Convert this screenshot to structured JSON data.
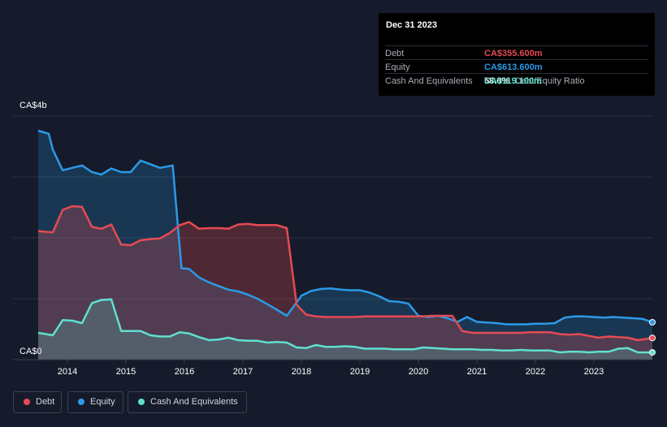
{
  "tooltip": {
    "date": "Dec 31 2023",
    "rows": [
      {
        "label": "Debt",
        "value": "CA$355.600m",
        "color": "#e64a54"
      },
      {
        "label": "Equity",
        "value": "CA$613.600m",
        "color": "#2b9ae8"
      },
      {
        "label": "",
        "value": "58.0%",
        "suffix": "Debt/Equity Ratio",
        "color": "#ffffff"
      },
      {
        "label": "Cash And Equivalents",
        "value": "CA$119.100m",
        "color": "#5fe0cf"
      }
    ]
  },
  "legend": [
    {
      "label": "Debt",
      "color": "#e64a54"
    },
    {
      "label": "Equity",
      "color": "#2b9ae8"
    },
    {
      "label": "Cash And Equivalents",
      "color": "#5fe0cf"
    }
  ],
  "chart_data": {
    "type": "area",
    "title": "",
    "xlabel": "",
    "ylabel": "",
    "ylim": [
      0,
      4000
    ],
    "xlim": [
      2013.5,
      2024.0
    ],
    "y_tick_labels": [
      {
        "value": 4000,
        "label": "CA$4b"
      },
      {
        "value": 0,
        "label": "CA$0"
      }
    ],
    "x_ticks": [
      2014,
      2015,
      2016,
      2017,
      2018,
      2019,
      2020,
      2021,
      2022,
      2023
    ],
    "grid": true,
    "units": "CA$ millions",
    "series": [
      {
        "name": "Equity",
        "color": "#2b9ae8",
        "points": [
          [
            2013.5,
            3760
          ],
          [
            2013.68,
            3710
          ],
          [
            2013.75,
            3450
          ],
          [
            2013.92,
            3110
          ],
          [
            2014.08,
            3150
          ],
          [
            2014.25,
            3190
          ],
          [
            2014.42,
            3080
          ],
          [
            2014.58,
            3040
          ],
          [
            2014.75,
            3140
          ],
          [
            2014.92,
            3080
          ],
          [
            2015.08,
            3080
          ],
          [
            2015.25,
            3270
          ],
          [
            2015.42,
            3210
          ],
          [
            2015.58,
            3150
          ],
          [
            2015.8,
            3190
          ],
          [
            2015.95,
            1500
          ],
          [
            2016.08,
            1490
          ],
          [
            2016.25,
            1350
          ],
          [
            2016.42,
            1270
          ],
          [
            2016.58,
            1210
          ],
          [
            2016.75,
            1150
          ],
          [
            2016.92,
            1120
          ],
          [
            2017.08,
            1070
          ],
          [
            2017.25,
            1000
          ],
          [
            2017.42,
            910
          ],
          [
            2017.58,
            820
          ],
          [
            2017.75,
            720
          ],
          [
            2018.0,
            1050
          ],
          [
            2018.17,
            1130
          ],
          [
            2018.33,
            1160
          ],
          [
            2018.5,
            1170
          ],
          [
            2018.67,
            1150
          ],
          [
            2018.83,
            1140
          ],
          [
            2019.0,
            1140
          ],
          [
            2019.17,
            1100
          ],
          [
            2019.33,
            1040
          ],
          [
            2019.5,
            960
          ],
          [
            2019.67,
            950
          ],
          [
            2019.83,
            920
          ],
          [
            2020.0,
            720
          ],
          [
            2020.17,
            700
          ],
          [
            2020.33,
            720
          ],
          [
            2020.5,
            680
          ],
          [
            2020.67,
            620
          ],
          [
            2020.83,
            700
          ],
          [
            2021.0,
            620
          ],
          [
            2021.17,
            610
          ],
          [
            2021.33,
            600
          ],
          [
            2021.5,
            580
          ],
          [
            2021.67,
            580
          ],
          [
            2021.83,
            580
          ],
          [
            2022.0,
            590
          ],
          [
            2022.17,
            590
          ],
          [
            2022.33,
            600
          ],
          [
            2022.5,
            690
          ],
          [
            2022.67,
            710
          ],
          [
            2022.83,
            710
          ],
          [
            2023.0,
            700
          ],
          [
            2023.17,
            690
          ],
          [
            2023.33,
            700
          ],
          [
            2023.5,
            690
          ],
          [
            2023.67,
            680
          ],
          [
            2023.83,
            670
          ],
          [
            2024.0,
            614
          ]
        ]
      },
      {
        "name": "Debt",
        "color": "#e64a54",
        "points": [
          [
            2013.5,
            2110
          ],
          [
            2013.75,
            2090
          ],
          [
            2013.92,
            2460
          ],
          [
            2014.08,
            2520
          ],
          [
            2014.25,
            2510
          ],
          [
            2014.42,
            2180
          ],
          [
            2014.58,
            2150
          ],
          [
            2014.75,
            2220
          ],
          [
            2014.92,
            1890
          ],
          [
            2015.08,
            1880
          ],
          [
            2015.25,
            1960
          ],
          [
            2015.42,
            1980
          ],
          [
            2015.58,
            1990
          ],
          [
            2015.75,
            2080
          ],
          [
            2015.92,
            2210
          ],
          [
            2016.08,
            2260
          ],
          [
            2016.25,
            2150
          ],
          [
            2016.42,
            2160
          ],
          [
            2016.58,
            2160
          ],
          [
            2016.75,
            2150
          ],
          [
            2016.92,
            2220
          ],
          [
            2017.08,
            2230
          ],
          [
            2017.25,
            2210
          ],
          [
            2017.42,
            2210
          ],
          [
            2017.58,
            2210
          ],
          [
            2017.75,
            2160
          ],
          [
            2017.92,
            900
          ],
          [
            2018.08,
            740
          ],
          [
            2018.25,
            710
          ],
          [
            2018.42,
            700
          ],
          [
            2018.58,
            700
          ],
          [
            2018.75,
            700
          ],
          [
            2018.92,
            700
          ],
          [
            2019.08,
            710
          ],
          [
            2019.25,
            710
          ],
          [
            2019.42,
            710
          ],
          [
            2019.58,
            710
          ],
          [
            2019.75,
            710
          ],
          [
            2019.92,
            710
          ],
          [
            2020.08,
            710
          ],
          [
            2020.25,
            720
          ],
          [
            2020.42,
            720
          ],
          [
            2020.58,
            720
          ],
          [
            2020.75,
            470
          ],
          [
            2020.92,
            440
          ],
          [
            2021.08,
            440
          ],
          [
            2021.25,
            440
          ],
          [
            2021.42,
            440
          ],
          [
            2021.58,
            440
          ],
          [
            2021.75,
            440
          ],
          [
            2021.92,
            450
          ],
          [
            2022.08,
            450
          ],
          [
            2022.25,
            450
          ],
          [
            2022.42,
            420
          ],
          [
            2022.58,
            410
          ],
          [
            2022.75,
            420
          ],
          [
            2022.92,
            390
          ],
          [
            2023.08,
            360
          ],
          [
            2023.25,
            380
          ],
          [
            2023.42,
            370
          ],
          [
            2023.58,
            360
          ],
          [
            2023.75,
            320
          ],
          [
            2024.0,
            356
          ]
        ]
      },
      {
        "name": "Cash And Equivalents",
        "color": "#5fe0cf",
        "points": [
          [
            2013.5,
            440
          ],
          [
            2013.75,
            400
          ],
          [
            2013.92,
            650
          ],
          [
            2014.08,
            640
          ],
          [
            2014.25,
            600
          ],
          [
            2014.42,
            930
          ],
          [
            2014.58,
            980
          ],
          [
            2014.75,
            990
          ],
          [
            2014.92,
            470
          ],
          [
            2015.08,
            470
          ],
          [
            2015.25,
            470
          ],
          [
            2015.42,
            400
          ],
          [
            2015.58,
            380
          ],
          [
            2015.75,
            380
          ],
          [
            2015.92,
            450
          ],
          [
            2016.08,
            430
          ],
          [
            2016.25,
            370
          ],
          [
            2016.42,
            320
          ],
          [
            2016.58,
            330
          ],
          [
            2016.75,
            360
          ],
          [
            2016.92,
            320
          ],
          [
            2017.08,
            310
          ],
          [
            2017.25,
            310
          ],
          [
            2017.42,
            280
          ],
          [
            2017.58,
            290
          ],
          [
            2017.75,
            280
          ],
          [
            2017.92,
            200
          ],
          [
            2018.08,
            190
          ],
          [
            2018.25,
            240
          ],
          [
            2018.42,
            210
          ],
          [
            2018.58,
            210
          ],
          [
            2018.75,
            220
          ],
          [
            2018.92,
            210
          ],
          [
            2019.08,
            180
          ],
          [
            2019.25,
            180
          ],
          [
            2019.42,
            180
          ],
          [
            2019.58,
            170
          ],
          [
            2019.75,
            170
          ],
          [
            2019.92,
            170
          ],
          [
            2020.08,
            200
          ],
          [
            2020.25,
            190
          ],
          [
            2020.42,
            180
          ],
          [
            2020.58,
            170
          ],
          [
            2020.75,
            170
          ],
          [
            2020.92,
            170
          ],
          [
            2021.08,
            160
          ],
          [
            2021.25,
            160
          ],
          [
            2021.42,
            150
          ],
          [
            2021.58,
            150
          ],
          [
            2021.75,
            160
          ],
          [
            2021.92,
            150
          ],
          [
            2022.08,
            150
          ],
          [
            2022.25,
            150
          ],
          [
            2022.42,
            120
          ],
          [
            2022.58,
            130
          ],
          [
            2022.75,
            130
          ],
          [
            2022.92,
            120
          ],
          [
            2023.08,
            130
          ],
          [
            2023.25,
            130
          ],
          [
            2023.42,
            180
          ],
          [
            2023.58,
            190
          ],
          [
            2023.75,
            120
          ],
          [
            2024.0,
            119
          ]
        ]
      }
    ]
  }
}
